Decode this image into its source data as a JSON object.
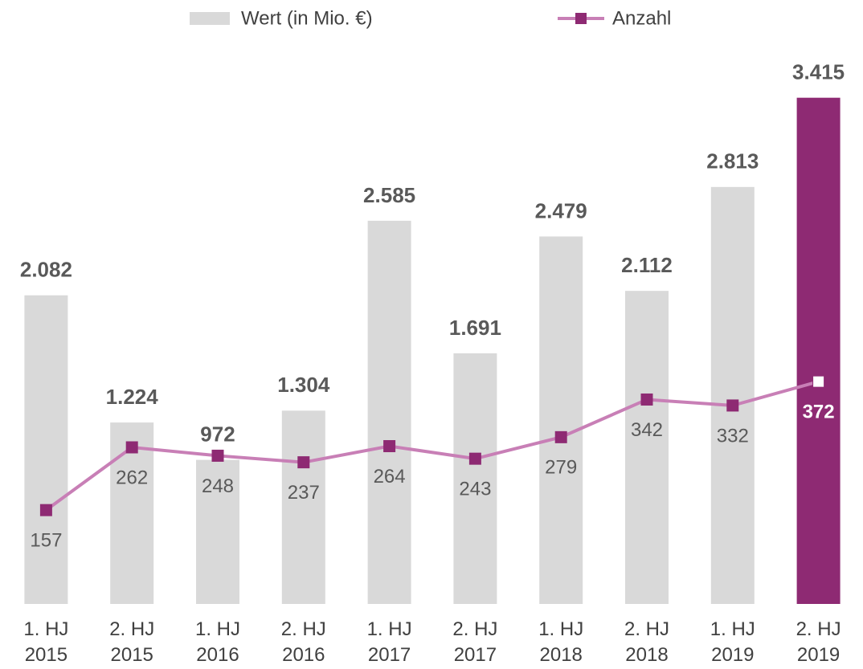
{
  "chart_data": {
    "type": "bar_line",
    "categories": [
      "1. HJ 2015",
      "2. HJ 2015",
      "1. HJ 2016",
      "2. HJ 2016",
      "1. HJ 2017",
      "2. HJ 2017",
      "1. HJ 2018",
      "2. HJ 2018",
      "1. HJ 2019",
      "2. HJ 2019"
    ],
    "series": [
      {
        "name": "Wert (in Mio. €)",
        "type": "bar",
        "color": "#d9d9d9",
        "colors": [
          "#d9d9d9",
          "#d9d9d9",
          "#d9d9d9",
          "#d9d9d9",
          "#d9d9d9",
          "#d9d9d9",
          "#d9d9d9",
          "#d9d9d9",
          "#d9d9d9",
          "#8e2a73"
        ],
        "values": [
          2082,
          1224,
          972,
          1304,
          2585,
          1691,
          2479,
          2112,
          2813,
          3415
        ],
        "value_labels": [
          "2.082",
          "1.224",
          "972",
          "1.304",
          "2.585",
          "1.691",
          "2.479",
          "2.112",
          "2.813",
          "3.415"
        ]
      },
      {
        "name": "Anzahl",
        "type": "line",
        "axis": "y2",
        "color": "#c87fb6",
        "marker_color": "#8e2a73",
        "marker_colors": [
          "#8e2a73",
          "#8e2a73",
          "#8e2a73",
          "#8e2a73",
          "#8e2a73",
          "#8e2a73",
          "#8e2a73",
          "#8e2a73",
          "#8e2a73",
          "#ffffff"
        ],
        "values": [
          157,
          262,
          248,
          237,
          264,
          243,
          279,
          342,
          332,
          372
        ]
      }
    ],
    "ylim": [
      0,
      3500
    ],
    "y2lim": [
      0,
      868
    ],
    "legend": "top"
  }
}
